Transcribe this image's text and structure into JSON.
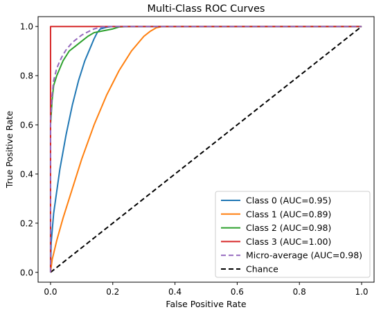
{
  "chart_data": {
    "type": "line",
    "title": "Multi-Class ROC Curves",
    "xlabel": "False Positive Rate",
    "ylabel": "True Positive Rate",
    "xlim": [
      -0.04,
      1.04
    ],
    "ylim": [
      -0.04,
      1.04
    ],
    "xticks": [
      0.0,
      0.2,
      0.4,
      0.6,
      0.8,
      1.0
    ],
    "yticks": [
      0.0,
      0.2,
      0.4,
      0.6,
      0.8,
      1.0
    ],
    "xtick_labels": [
      "0.0",
      "0.2",
      "0.4",
      "0.6",
      "0.8",
      "1.0"
    ],
    "ytick_labels": [
      "0.0",
      "0.2",
      "0.4",
      "0.6",
      "0.8",
      "1.0"
    ],
    "grid": false,
    "legend_position": "lower-right",
    "series": [
      {
        "name": "Class 0 (AUC=0.95)",
        "color": "#1f77b4",
        "style": "solid",
        "x": [
          0,
          0.002,
          0.01,
          0.02,
          0.03,
          0.04,
          0.05,
          0.06,
          0.07,
          0.08,
          0.09,
          0.1,
          0.11,
          0.12,
          0.13,
          0.14,
          0.15,
          0.16,
          0.18,
          0.2,
          0.25,
          1.0
        ],
        "y": [
          0,
          0.12,
          0.24,
          0.33,
          0.42,
          0.49,
          0.56,
          0.62,
          0.68,
          0.73,
          0.78,
          0.82,
          0.86,
          0.89,
          0.92,
          0.95,
          0.975,
          0.99,
          0.997,
          1.0,
          1.0,
          1.0
        ]
      },
      {
        "name": "Class 1 (AUC=0.89)",
        "color": "#ff7f0e",
        "style": "solid",
        "x": [
          0,
          0.005,
          0.02,
          0.04,
          0.06,
          0.08,
          0.1,
          0.12,
          0.14,
          0.16,
          0.18,
          0.2,
          0.22,
          0.24,
          0.26,
          0.28,
          0.3,
          0.32,
          0.34,
          0.36,
          0.4,
          1.0
        ],
        "y": [
          0,
          0.05,
          0.13,
          0.22,
          0.3,
          0.38,
          0.46,
          0.53,
          0.6,
          0.66,
          0.72,
          0.77,
          0.82,
          0.86,
          0.9,
          0.93,
          0.96,
          0.98,
          0.995,
          1.0,
          1.0,
          1.0
        ]
      },
      {
        "name": "Class 2 (AUC=0.98)",
        "color": "#2ca02c",
        "style": "solid",
        "x": [
          0,
          0.0,
          0.005,
          0.01,
          0.02,
          0.03,
          0.04,
          0.05,
          0.06,
          0.08,
          0.1,
          0.12,
          0.14,
          0.16,
          0.18,
          0.2,
          0.22,
          0.25,
          1.0
        ],
        "y": [
          0,
          0.6,
          0.7,
          0.76,
          0.8,
          0.83,
          0.86,
          0.88,
          0.9,
          0.92,
          0.94,
          0.96,
          0.975,
          0.98,
          0.985,
          0.99,
          0.998,
          1.0,
          1.0
        ]
      },
      {
        "name": "Class 3 (AUC=1.00)",
        "color": "#d62728",
        "style": "solid",
        "x": [
          0,
          0,
          1.0
        ],
        "y": [
          0,
          1.0,
          1.0
        ]
      },
      {
        "name": "Micro-average (AUC=0.98)",
        "color": "#9467bd",
        "style": "dashed",
        "x": [
          0,
          0.0,
          0.005,
          0.01,
          0.02,
          0.03,
          0.04,
          0.05,
          0.06,
          0.07,
          0.08,
          0.09,
          0.1,
          0.12,
          0.14,
          0.16,
          0.18,
          0.2,
          0.25,
          1.0
        ],
        "y": [
          0,
          0.62,
          0.72,
          0.78,
          0.83,
          0.86,
          0.885,
          0.905,
          0.92,
          0.935,
          0.945,
          0.955,
          0.965,
          0.978,
          0.99,
          0.997,
          1.0,
          1.0,
          1.0,
          1.0
        ]
      },
      {
        "name": "Chance",
        "color": "#000000",
        "style": "dashed",
        "x": [
          0,
          1.0
        ],
        "y": [
          0,
          1.0
        ]
      }
    ]
  }
}
